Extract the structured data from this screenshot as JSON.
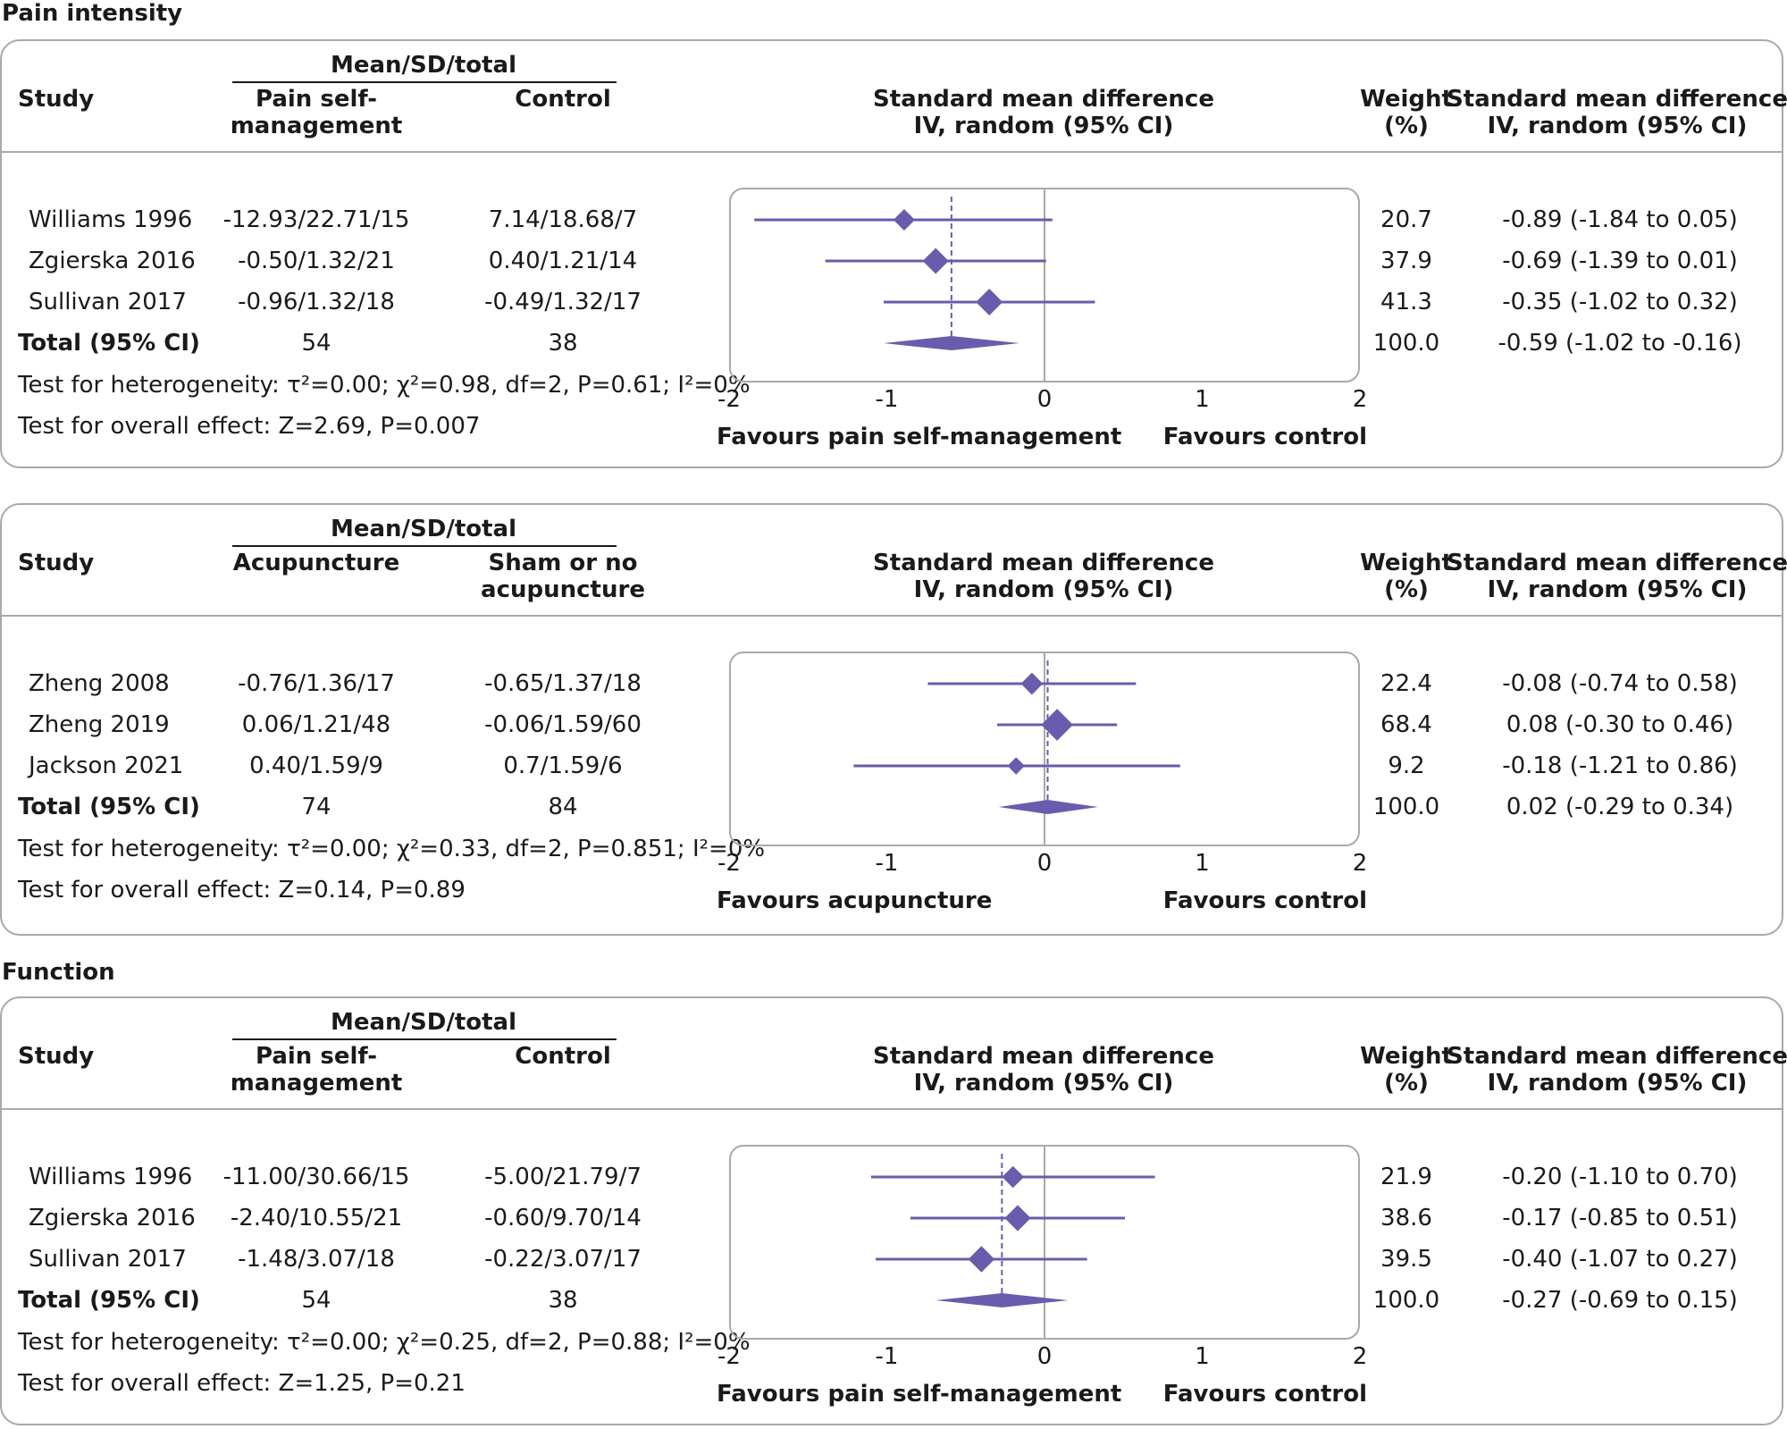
{
  "colors": {
    "marker": "#6b5bac",
    "frame": "#a9a9a9",
    "text": "#1a1a1a"
  },
  "chart_data": [
    {
      "type": "forest",
      "section_title": "Pain intensity",
      "headers": {
        "study": "Study",
        "mean_sd_total": "Mean/SD/total",
        "group1": "Pain self-\nmanagement",
        "group2": "Control",
        "effect": "Standard mean difference\nIV, random (95% CI)",
        "weight": "Weight\n(%)",
        "effect_right": "Standard mean difference\nIV, random (95% CI)"
      },
      "xlim": [
        -2,
        2
      ],
      "ticks": [
        "-2",
        "-1",
        "0",
        "1",
        "2"
      ],
      "favours_left": "Favours pain self-management",
      "favours_right": "Favours control",
      "studies": [
        {
          "name": "Williams 1996",
          "group1": "-12.93/22.71/15",
          "group2": "7.14/18.68/7",
          "weight": "20.7",
          "ci_text": "-0.89 (-1.84 to 0.05)",
          "est": -0.89,
          "lo": -1.84,
          "hi": 0.05,
          "weight_value": 20.7
        },
        {
          "name": "Zgierska 2016",
          "group1": "-0.50/1.32/21",
          "group2": "0.40/1.21/14",
          "weight": "37.9",
          "ci_text": "-0.69 (-1.39 to 0.01)",
          "est": -0.69,
          "lo": -1.39,
          "hi": 0.01,
          "weight_value": 37.9
        },
        {
          "name": "Sullivan 2017",
          "group1": "-0.96/1.32/18",
          "group2": "-0.49/1.32/17",
          "weight": "41.3",
          "ci_text": "-0.35 (-1.02 to 0.32)",
          "est": -0.35,
          "lo": -1.02,
          "hi": 0.32,
          "weight_value": 41.3
        }
      ],
      "total": {
        "label": "Total (95% CI)",
        "group1": "54",
        "group2": "38",
        "weight": "100.0",
        "ci_text": "-0.59 (-1.02 to -0.16)",
        "est": -0.59,
        "lo": -1.02,
        "hi": -0.16
      },
      "heterogeneity": "Test for heterogeneity: τ²=0.00; χ²=0.98, df=2, P=0.61; I²=0%",
      "overall_effect": "Test for overall effect: Z=2.69, P=0.007"
    },
    {
      "type": "forest",
      "section_title": "",
      "headers": {
        "study": "Study",
        "mean_sd_total": "Mean/SD/total",
        "group1": "Acupuncture",
        "group2": "Sham or no\nacupuncture",
        "effect": "Standard mean difference\nIV, random (95% CI)",
        "weight": "Weight\n(%)",
        "effect_right": "Standard mean difference\nIV, random (95% CI)"
      },
      "xlim": [
        -2,
        2
      ],
      "ticks": [
        "-2",
        "-1",
        "0",
        "1",
        "2"
      ],
      "favours_left": "Favours acupuncture",
      "favours_right": "Favours control",
      "studies": [
        {
          "name": "Zheng 2008",
          "group1": "-0.76/1.36/17",
          "group2": "-0.65/1.37/18",
          "weight": "22.4",
          "ci_text": "-0.08 (-0.74 to 0.58)",
          "est": -0.08,
          "lo": -0.74,
          "hi": 0.58,
          "weight_value": 22.4
        },
        {
          "name": "Zheng 2019",
          "group1": "0.06/1.21/48",
          "group2": "-0.06/1.59/60",
          "weight": "68.4",
          "ci_text": "0.08 (-0.30 to 0.46)",
          "est": 0.08,
          "lo": -0.3,
          "hi": 0.46,
          "weight_value": 68.4
        },
        {
          "name": "Jackson 2021",
          "group1": "0.40/1.59/9",
          "group2": "0.7/1.59/6",
          "weight": "9.2",
          "ci_text": "-0.18 (-1.21 to 0.86)",
          "est": -0.18,
          "lo": -1.21,
          "hi": 0.86,
          "weight_value": 9.2
        }
      ],
      "total": {
        "label": "Total (95% CI)",
        "group1": "74",
        "group2": "84",
        "weight": "100.0",
        "ci_text": "0.02 (-0.29 to 0.34)",
        "est": 0.02,
        "lo": -0.29,
        "hi": 0.34
      },
      "heterogeneity": "Test for heterogeneity: τ²=0.00; χ²=0.33, df=2, P=0.851; I²=0%",
      "overall_effect": "Test for overall effect: Z=0.14, P=0.89"
    },
    {
      "type": "forest",
      "section_title": "Function",
      "headers": {
        "study": "Study",
        "mean_sd_total": "Mean/SD/total",
        "group1": "Pain self-\nmanagement",
        "group2": "Control",
        "effect": "Standard mean difference\nIV, random (95% CI)",
        "weight": "Weight\n(%)",
        "effect_right": "Standard mean difference\nIV, random (95% CI)"
      },
      "xlim": [
        -2,
        2
      ],
      "ticks": [
        "-2",
        "-1",
        "0",
        "1",
        "2"
      ],
      "favours_left": "Favours pain self-management",
      "favours_right": "Favours control",
      "studies": [
        {
          "name": "Williams 1996",
          "group1": "-11.00/30.66/15",
          "group2": "-5.00/21.79/7",
          "weight": "21.9",
          "ci_text": "-0.20 (-1.10 to 0.70)",
          "est": -0.2,
          "lo": -1.1,
          "hi": 0.7,
          "weight_value": 21.9
        },
        {
          "name": "Zgierska 2016",
          "group1": "-2.40/10.55/21",
          "group2": "-0.60/9.70/14",
          "weight": "38.6",
          "ci_text": "-0.17 (-0.85 to 0.51)",
          "est": -0.17,
          "lo": -0.85,
          "hi": 0.51,
          "weight_value": 38.6
        },
        {
          "name": "Sullivan 2017",
          "group1": "-1.48/3.07/18",
          "group2": "-0.22/3.07/17",
          "weight": "39.5",
          "ci_text": "-0.40 (-1.07 to 0.27)",
          "est": -0.4,
          "lo": -1.07,
          "hi": 0.27,
          "weight_value": 39.5
        }
      ],
      "total": {
        "label": "Total (95% CI)",
        "group1": "54",
        "group2": "38",
        "weight": "100.0",
        "ci_text": "-0.27 (-0.69 to 0.15)",
        "est": -0.27,
        "lo": -0.69,
        "hi": 0.15
      },
      "heterogeneity": "Test for heterogeneity: τ²=0.00; χ²=0.25, df=2, P=0.88; I²=0%",
      "overall_effect": "Test for overall effect: Z=1.25, P=0.21"
    }
  ]
}
